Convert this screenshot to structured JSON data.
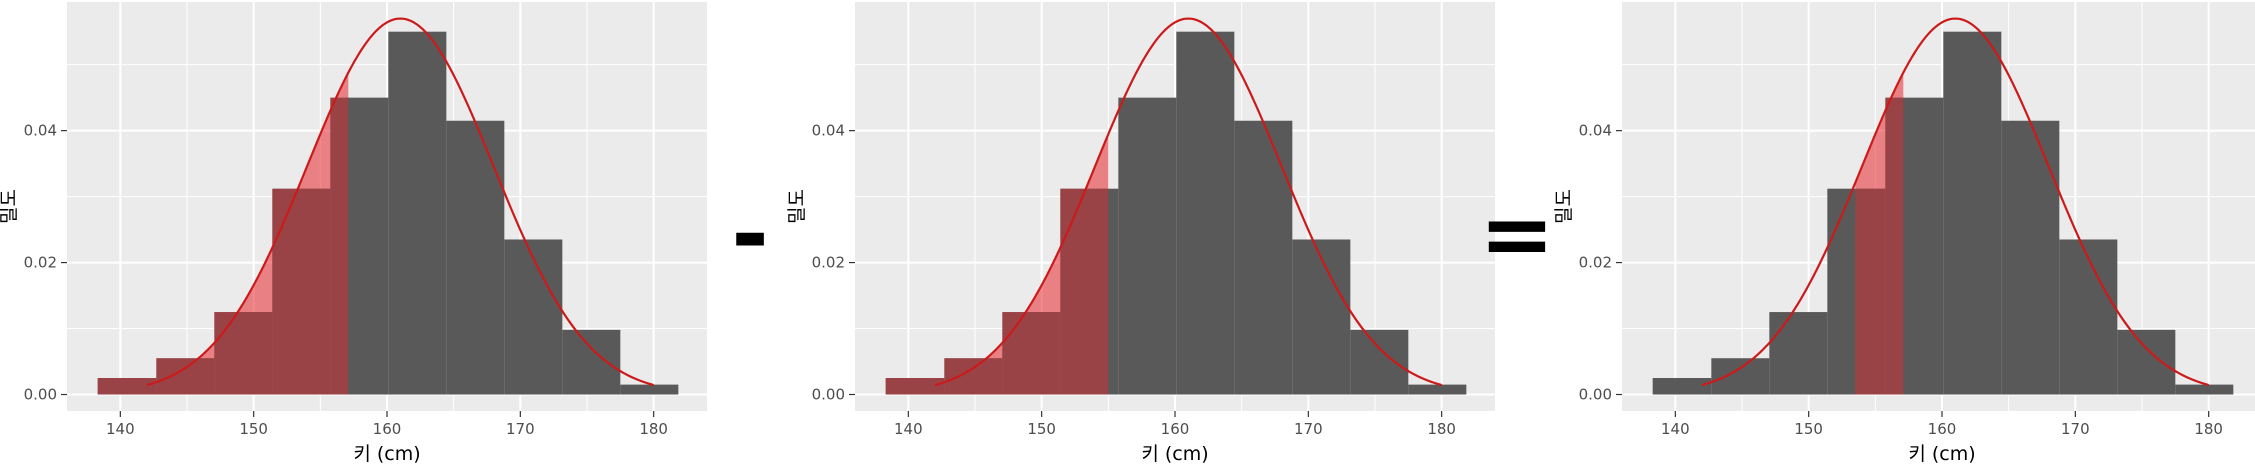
{
  "operators": [
    "-",
    "="
  ],
  "colors": {
    "panel_background": "#ebebeb",
    "grid": "#ffffff",
    "bar": "#595959",
    "highlight_area": "#e8292f",
    "curve": "#cc1a1a"
  },
  "chart_data": [
    {
      "type": "bar",
      "title": "",
      "xlabel": "키 (cm)",
      "ylabel": "밀도",
      "xlim": [
        136,
        184
      ],
      "ylim": [
        -0.0025,
        0.0595
      ],
      "xticks": [
        140,
        150,
        160,
        170,
        180
      ],
      "yticks": [
        0.0,
        0.02,
        0.04
      ],
      "ytick_labels": [
        "0.00",
        "0.02",
        "0.04"
      ],
      "grid": true,
      "histogram": {
        "bin_edges": [
          138.3,
          142.7,
          147.05,
          151.4,
          155.75,
          160.1,
          164.45,
          168.8,
          173.15,
          177.5,
          181.85
        ],
        "density": [
          0.0025,
          0.0055,
          0.0125,
          0.0312,
          0.045,
          0.055,
          0.0415,
          0.0235,
          0.0098,
          0.0015
        ]
      },
      "normal_curve": {
        "mean": 161,
        "sd": 7,
        "x_range": [
          142,
          180
        ]
      },
      "shaded_region": {
        "from": 138.3,
        "to": 157.1
      }
    },
    {
      "type": "bar",
      "title": "",
      "xlabel": "키 (cm)",
      "ylabel": "밀도",
      "xlim": [
        136,
        184
      ],
      "ylim": [
        -0.0025,
        0.0595
      ],
      "xticks": [
        140,
        150,
        160,
        170,
        180
      ],
      "yticks": [
        0.0,
        0.02,
        0.04
      ],
      "ytick_labels": [
        "0.00",
        "0.02",
        "0.04"
      ],
      "grid": true,
      "histogram": {
        "bin_edges": [
          138.3,
          142.7,
          147.05,
          151.4,
          155.75,
          160.1,
          164.45,
          168.8,
          173.15,
          177.5,
          181.85
        ],
        "density": [
          0.0025,
          0.0055,
          0.0125,
          0.0312,
          0.045,
          0.055,
          0.0415,
          0.0235,
          0.0098,
          0.0015
        ]
      },
      "normal_curve": {
        "mean": 161,
        "sd": 7,
        "x_range": [
          142,
          180
        ]
      },
      "shaded_region": {
        "from": 138.3,
        "to": 155.0
      }
    },
    {
      "type": "bar",
      "title": "",
      "xlabel": "키 (cm)",
      "ylabel": "밀도",
      "xlim": [
        136,
        184
      ],
      "ylim": [
        -0.0025,
        0.0595
      ],
      "xticks": [
        140,
        150,
        160,
        170,
        180
      ],
      "yticks": [
        0.0,
        0.02,
        0.04
      ],
      "ytick_labels": [
        "0.00",
        "0.02",
        "0.04"
      ],
      "grid": true,
      "histogram": {
        "bin_edges": [
          138.3,
          142.7,
          147.05,
          151.4,
          155.75,
          160.1,
          164.45,
          168.8,
          173.15,
          177.5,
          181.85
        ],
        "density": [
          0.0025,
          0.0055,
          0.0125,
          0.0312,
          0.045,
          0.055,
          0.0415,
          0.0235,
          0.0098,
          0.0015
        ]
      },
      "normal_curve": {
        "mean": 161,
        "sd": 7,
        "x_range": [
          142,
          180
        ]
      },
      "shaded_region": {
        "from": 153.5,
        "to": 157.1
      }
    }
  ]
}
